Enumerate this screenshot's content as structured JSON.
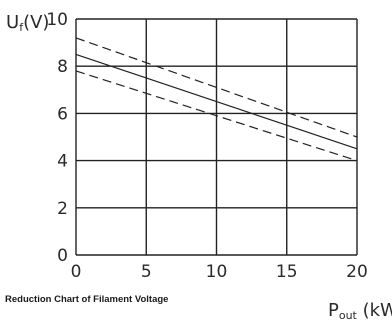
{
  "chart_data": {
    "type": "line",
    "title": "Reduction Chart of Filament Voltage",
    "ylabel": "Uf(V)",
    "xlabel": "Pout (kW)",
    "xlim": [
      0,
      20
    ],
    "ylim": [
      0,
      10
    ],
    "x_ticks": [
      0,
      5,
      10,
      15,
      20
    ],
    "y_ticks": [
      0,
      2,
      4,
      6,
      8,
      10
    ],
    "grid": true,
    "series": [
      {
        "style": "solid",
        "x": [
          0,
          20
        ],
        "y": [
          8.5,
          4.5
        ]
      },
      {
        "style": "dashed",
        "x": [
          0,
          20
        ],
        "y": [
          9.2,
          5.0
        ]
      },
      {
        "style": "dashed",
        "x": [
          0,
          20
        ],
        "y": [
          7.8,
          4.0
        ]
      }
    ]
  },
  "labels": {
    "y_axis_main": "U",
    "y_axis_sub": "f",
    "y_axis_unit": "(V)",
    "x_axis_main": "P",
    "x_axis_sub": "out",
    "x_axis_unit": " (kW)",
    "caption": "Reduction Chart of Filament Voltage"
  }
}
